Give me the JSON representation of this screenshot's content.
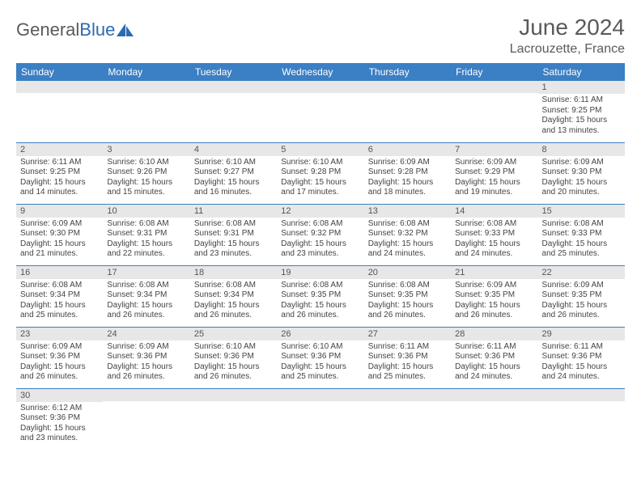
{
  "brand": {
    "part1": "General",
    "part2": "Blue"
  },
  "title": "June 2024",
  "location": "Lacrouzette, France",
  "colors": {
    "header_bg": "#3b7fc4",
    "header_text": "#ffffff",
    "daynum_bg": "#e7e7e7",
    "cell_border": "#3b7fc4",
    "logo_accent": "#2b6bb2",
    "text": "#5a5a5a"
  },
  "day_headers": [
    "Sunday",
    "Monday",
    "Tuesday",
    "Wednesday",
    "Thursday",
    "Friday",
    "Saturday"
  ],
  "weeks": [
    [
      {
        "n": "",
        "sunrise": "",
        "sunset": "",
        "daylight": ""
      },
      {
        "n": "",
        "sunrise": "",
        "sunset": "",
        "daylight": ""
      },
      {
        "n": "",
        "sunrise": "",
        "sunset": "",
        "daylight": ""
      },
      {
        "n": "",
        "sunrise": "",
        "sunset": "",
        "daylight": ""
      },
      {
        "n": "",
        "sunrise": "",
        "sunset": "",
        "daylight": ""
      },
      {
        "n": "",
        "sunrise": "",
        "sunset": "",
        "daylight": ""
      },
      {
        "n": "1",
        "sunrise": "Sunrise: 6:11 AM",
        "sunset": "Sunset: 9:25 PM",
        "daylight": "Daylight: 15 hours and 13 minutes."
      }
    ],
    [
      {
        "n": "2",
        "sunrise": "Sunrise: 6:11 AM",
        "sunset": "Sunset: 9:25 PM",
        "daylight": "Daylight: 15 hours and 14 minutes."
      },
      {
        "n": "3",
        "sunrise": "Sunrise: 6:10 AM",
        "sunset": "Sunset: 9:26 PM",
        "daylight": "Daylight: 15 hours and 15 minutes."
      },
      {
        "n": "4",
        "sunrise": "Sunrise: 6:10 AM",
        "sunset": "Sunset: 9:27 PM",
        "daylight": "Daylight: 15 hours and 16 minutes."
      },
      {
        "n": "5",
        "sunrise": "Sunrise: 6:10 AM",
        "sunset": "Sunset: 9:28 PM",
        "daylight": "Daylight: 15 hours and 17 minutes."
      },
      {
        "n": "6",
        "sunrise": "Sunrise: 6:09 AM",
        "sunset": "Sunset: 9:28 PM",
        "daylight": "Daylight: 15 hours and 18 minutes."
      },
      {
        "n": "7",
        "sunrise": "Sunrise: 6:09 AM",
        "sunset": "Sunset: 9:29 PM",
        "daylight": "Daylight: 15 hours and 19 minutes."
      },
      {
        "n": "8",
        "sunrise": "Sunrise: 6:09 AM",
        "sunset": "Sunset: 9:30 PM",
        "daylight": "Daylight: 15 hours and 20 minutes."
      }
    ],
    [
      {
        "n": "9",
        "sunrise": "Sunrise: 6:09 AM",
        "sunset": "Sunset: 9:30 PM",
        "daylight": "Daylight: 15 hours and 21 minutes."
      },
      {
        "n": "10",
        "sunrise": "Sunrise: 6:08 AM",
        "sunset": "Sunset: 9:31 PM",
        "daylight": "Daylight: 15 hours and 22 minutes."
      },
      {
        "n": "11",
        "sunrise": "Sunrise: 6:08 AM",
        "sunset": "Sunset: 9:31 PM",
        "daylight": "Daylight: 15 hours and 23 minutes."
      },
      {
        "n": "12",
        "sunrise": "Sunrise: 6:08 AM",
        "sunset": "Sunset: 9:32 PM",
        "daylight": "Daylight: 15 hours and 23 minutes."
      },
      {
        "n": "13",
        "sunrise": "Sunrise: 6:08 AM",
        "sunset": "Sunset: 9:32 PM",
        "daylight": "Daylight: 15 hours and 24 minutes."
      },
      {
        "n": "14",
        "sunrise": "Sunrise: 6:08 AM",
        "sunset": "Sunset: 9:33 PM",
        "daylight": "Daylight: 15 hours and 24 minutes."
      },
      {
        "n": "15",
        "sunrise": "Sunrise: 6:08 AM",
        "sunset": "Sunset: 9:33 PM",
        "daylight": "Daylight: 15 hours and 25 minutes."
      }
    ],
    [
      {
        "n": "16",
        "sunrise": "Sunrise: 6:08 AM",
        "sunset": "Sunset: 9:34 PM",
        "daylight": "Daylight: 15 hours and 25 minutes."
      },
      {
        "n": "17",
        "sunrise": "Sunrise: 6:08 AM",
        "sunset": "Sunset: 9:34 PM",
        "daylight": "Daylight: 15 hours and 26 minutes."
      },
      {
        "n": "18",
        "sunrise": "Sunrise: 6:08 AM",
        "sunset": "Sunset: 9:34 PM",
        "daylight": "Daylight: 15 hours and 26 minutes."
      },
      {
        "n": "19",
        "sunrise": "Sunrise: 6:08 AM",
        "sunset": "Sunset: 9:35 PM",
        "daylight": "Daylight: 15 hours and 26 minutes."
      },
      {
        "n": "20",
        "sunrise": "Sunrise: 6:08 AM",
        "sunset": "Sunset: 9:35 PM",
        "daylight": "Daylight: 15 hours and 26 minutes."
      },
      {
        "n": "21",
        "sunrise": "Sunrise: 6:09 AM",
        "sunset": "Sunset: 9:35 PM",
        "daylight": "Daylight: 15 hours and 26 minutes."
      },
      {
        "n": "22",
        "sunrise": "Sunrise: 6:09 AM",
        "sunset": "Sunset: 9:35 PM",
        "daylight": "Daylight: 15 hours and 26 minutes."
      }
    ],
    [
      {
        "n": "23",
        "sunrise": "Sunrise: 6:09 AM",
        "sunset": "Sunset: 9:36 PM",
        "daylight": "Daylight: 15 hours and 26 minutes."
      },
      {
        "n": "24",
        "sunrise": "Sunrise: 6:09 AM",
        "sunset": "Sunset: 9:36 PM",
        "daylight": "Daylight: 15 hours and 26 minutes."
      },
      {
        "n": "25",
        "sunrise": "Sunrise: 6:10 AM",
        "sunset": "Sunset: 9:36 PM",
        "daylight": "Daylight: 15 hours and 26 minutes."
      },
      {
        "n": "26",
        "sunrise": "Sunrise: 6:10 AM",
        "sunset": "Sunset: 9:36 PM",
        "daylight": "Daylight: 15 hours and 25 minutes."
      },
      {
        "n": "27",
        "sunrise": "Sunrise: 6:11 AM",
        "sunset": "Sunset: 9:36 PM",
        "daylight": "Daylight: 15 hours and 25 minutes."
      },
      {
        "n": "28",
        "sunrise": "Sunrise: 6:11 AM",
        "sunset": "Sunset: 9:36 PM",
        "daylight": "Daylight: 15 hours and 24 minutes."
      },
      {
        "n": "29",
        "sunrise": "Sunrise: 6:11 AM",
        "sunset": "Sunset: 9:36 PM",
        "daylight": "Daylight: 15 hours and 24 minutes."
      }
    ],
    [
      {
        "n": "30",
        "sunrise": "Sunrise: 6:12 AM",
        "sunset": "Sunset: 9:36 PM",
        "daylight": "Daylight: 15 hours and 23 minutes."
      },
      {
        "n": "",
        "sunrise": "",
        "sunset": "",
        "daylight": ""
      },
      {
        "n": "",
        "sunrise": "",
        "sunset": "",
        "daylight": ""
      },
      {
        "n": "",
        "sunrise": "",
        "sunset": "",
        "daylight": ""
      },
      {
        "n": "",
        "sunrise": "",
        "sunset": "",
        "daylight": ""
      },
      {
        "n": "",
        "sunrise": "",
        "sunset": "",
        "daylight": ""
      },
      {
        "n": "",
        "sunrise": "",
        "sunset": "",
        "daylight": ""
      }
    ]
  ]
}
